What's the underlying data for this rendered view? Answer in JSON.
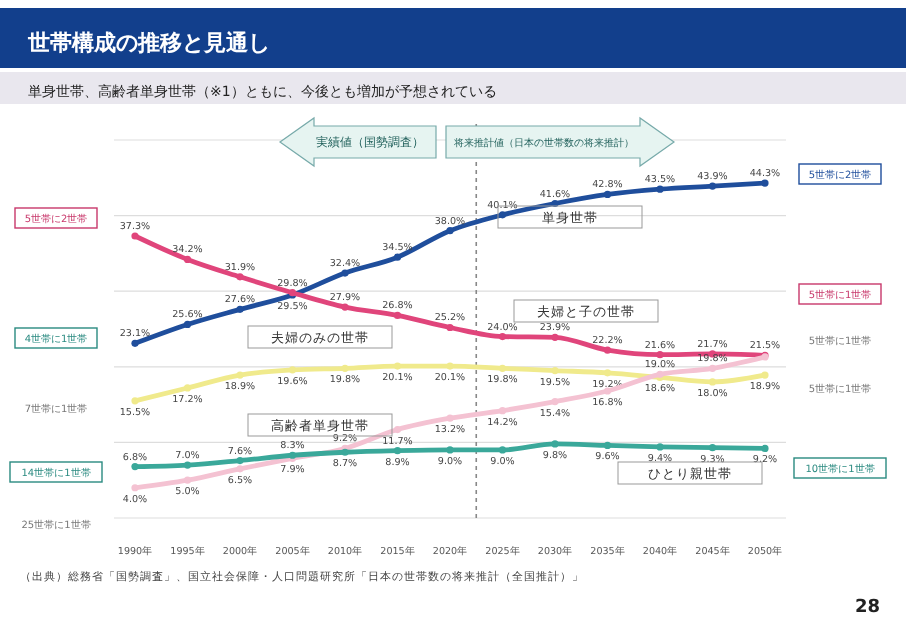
{
  "chart_data": {
    "type": "line",
    "title": "世帯構成の推移と見通し",
    "subtitle": "単身世帯、高齢者単身世帯（※1）ともに、今後とも増加が予想されている",
    "x": [
      1990,
      1995,
      2000,
      2005,
      2010,
      2015,
      2020,
      2025,
      2030,
      2035,
      2040,
      2045,
      2050
    ],
    "xticks": [
      {
        "value": 1990,
        "label": "1990年"
      },
      {
        "value": 1995,
        "label": "1995年"
      },
      {
        "value": 2000,
        "label": "2000年"
      },
      {
        "value": 2005,
        "label": "2005年"
      },
      {
        "value": 2010,
        "label": "2010年"
      },
      {
        "value": 2015,
        "label": "2015年"
      },
      {
        "value": 2020,
        "label": "2020年"
      },
      {
        "value": 2025,
        "label": "2025年"
      },
      {
        "value": 2030,
        "label": "2030年"
      },
      {
        "value": 2035,
        "label": "2035年"
      },
      {
        "value": 2040,
        "label": "2040年"
      },
      {
        "value": 2045,
        "label": "2045年"
      },
      {
        "value": 2050,
        "label": "2050年"
      }
    ],
    "xlim": [
      1988,
      2052
    ],
    "ylim": [
      0,
      50
    ],
    "yticks": [
      {
        "value": 0,
        "label": null
      },
      {
        "value": 10,
        "label": null
      },
      {
        "value": 20,
        "label": null
      },
      {
        "value": 30,
        "label": null
      },
      {
        "value": 40,
        "label": null
      },
      {
        "value": 50,
        "label": null
      }
    ],
    "tick_labels": "x",
    "grid": "y",
    "marker": "circle",
    "line_style": "solid",
    "legend": false,
    "series": [
      {
        "name": "単身世帯",
        "color": "#1f4e9c",
        "values": [
          23.1,
          25.6,
          27.6,
          29.5,
          32.4,
          34.5,
          38.0,
          40.1,
          41.6,
          42.8,
          43.5,
          43.9,
          44.3
        ],
        "value_labels": [
          "23.1%",
          "25.6%",
          "27.6%",
          "29.5%",
          "32.4%",
          "34.5%",
          "38.0%",
          "40.1%",
          "41.6%",
          "42.8%",
          "43.5%",
          "43.9%",
          "44.3%"
        ]
      },
      {
        "name": "夫婦と子の世帯",
        "color": "#e0457b",
        "values": [
          37.3,
          34.2,
          31.9,
          29.8,
          27.9,
          26.8,
          25.2,
          24.0,
          23.9,
          22.2,
          21.6,
          21.7,
          21.5
        ],
        "value_labels": [
          "37.3%",
          "34.2%",
          "31.9%",
          "29.8%",
          "27.9%",
          "26.8%",
          "25.2%",
          "24.0%",
          "23.9%",
          "22.2%",
          "21.6%",
          "21.7%",
          "21.5%"
        ]
      },
      {
        "name": "夫婦のみの世帯",
        "color": "#f0ea8c",
        "values": [
          15.5,
          17.2,
          18.9,
          19.6,
          19.8,
          20.1,
          20.1,
          19.8,
          19.5,
          19.2,
          18.6,
          18.0,
          18.9
        ],
        "value_labels": [
          "15.5%",
          "17.2%",
          "18.9%",
          "19.6%",
          "19.8%",
          "20.1%",
          "20.1%",
          "19.8%",
          "19.5%",
          "19.2%",
          "18.6%",
          "18.0%",
          "18.9%"
        ]
      },
      {
        "name": "高齢者単身世帯",
        "color": "#f4c2d2",
        "values": [
          4.0,
          5.0,
          6.5,
          7.9,
          9.2,
          11.7,
          13.2,
          14.2,
          15.4,
          16.8,
          19.0,
          19.8,
          21.3
        ],
        "value_labels": [
          "4.0%",
          "5.0%",
          "6.5%",
          "7.9%",
          "9.2%",
          "11.7%",
          "13.2%",
          "14.2%",
          "15.4%",
          "16.8%",
          "19.0%",
          "19.8%",
          null
        ]
      },
      {
        "name": "ひとり親世帯",
        "color": "#3aa89a",
        "values": [
          6.8,
          7.0,
          7.6,
          8.3,
          8.7,
          8.9,
          9.0,
          9.0,
          9.8,
          9.6,
          9.4,
          9.3,
          9.2
        ],
        "value_labels": [
          "6.8%",
          "7.0%",
          "7.6%",
          "8.3%",
          "8.7%",
          "8.9%",
          "9.0%",
          "9.0%",
          "9.8%",
          "9.6%",
          "9.4%",
          "9.3%",
          "9.2%"
        ]
      }
    ],
    "ref_lines": [
      {
        "axis": "x",
        "value": 2022.5,
        "line_style": "dashed",
        "color": "#888888"
      }
    ],
    "annotations": [
      "実績値（国勢調査）",
      "将来推計値（日本の世帯数の将来推計）",
      "5世帯に2世帯",
      "4世帯に1世帯",
      "7世帯に1世帯",
      "14世帯に1世帯",
      "25世帯に1世帯",
      "5世帯に2世帯",
      "5世帯に1世帯",
      "5世帯に1世帯",
      "5世帯に1世帯",
      "10世帯に1世帯",
      "（出典）総務省「国勢調査」、国立社会保障・人口問題研究所「日本の世帯数の将来推計（全国推計）」",
      "28"
    ]
  }
}
